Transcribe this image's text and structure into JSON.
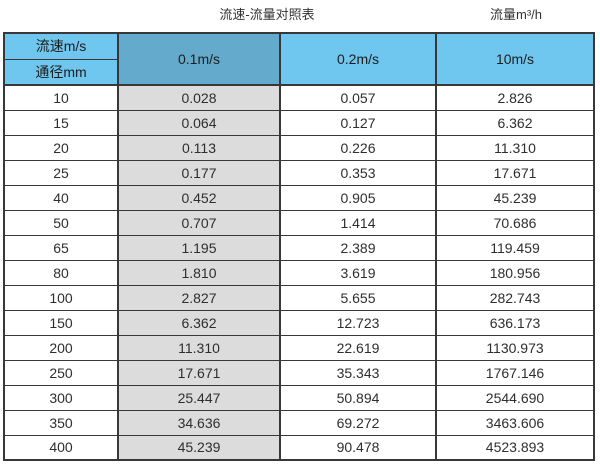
{
  "page": {
    "title_left": "流速-流量对照表",
    "title_right": "流量m³/h"
  },
  "chart_data": {
    "type": "table",
    "title": "流速-流量对照表",
    "unit_label": "流量m³/h",
    "corner_header": {
      "top": "流速m/s",
      "bottom": "通径mm"
    },
    "columns": [
      "0.1m/s",
      "0.2m/s",
      "10m/s"
    ],
    "rows": [
      [
        "10",
        "0.028",
        "0.057",
        "2.826"
      ],
      [
        "15",
        "0.064",
        "0.127",
        "6.362"
      ],
      [
        "20",
        "0.113",
        "0.226",
        "11.310"
      ],
      [
        "25",
        "0.177",
        "0.353",
        "17.671"
      ],
      [
        "40",
        "0.452",
        "0.905",
        "45.239"
      ],
      [
        "50",
        "0.707",
        "1.414",
        "70.686"
      ],
      [
        "65",
        "1.195",
        "2.389",
        "119.459"
      ],
      [
        "80",
        "1.810",
        "3.619",
        "180.956"
      ],
      [
        "100",
        "2.827",
        "5.655",
        "282.743"
      ],
      [
        "150",
        "6.362",
        "12.723",
        "636.173"
      ],
      [
        "200",
        "11.310",
        "22.619",
        "1130.973"
      ],
      [
        "250",
        "17.671",
        "35.343",
        "1767.146"
      ],
      [
        "300",
        "25.447",
        "50.894",
        "2544.690"
      ],
      [
        "350",
        "34.636",
        "69.272",
        "3463.606"
      ],
      [
        "400",
        "45.239",
        "90.478",
        "4523.893"
      ]
    ]
  },
  "colors": {
    "header_light_blue": "#6FC6EE",
    "header_dark_blue": "#63AACC",
    "grey_column": "#DCDCDC",
    "border_dark": "#383838"
  }
}
